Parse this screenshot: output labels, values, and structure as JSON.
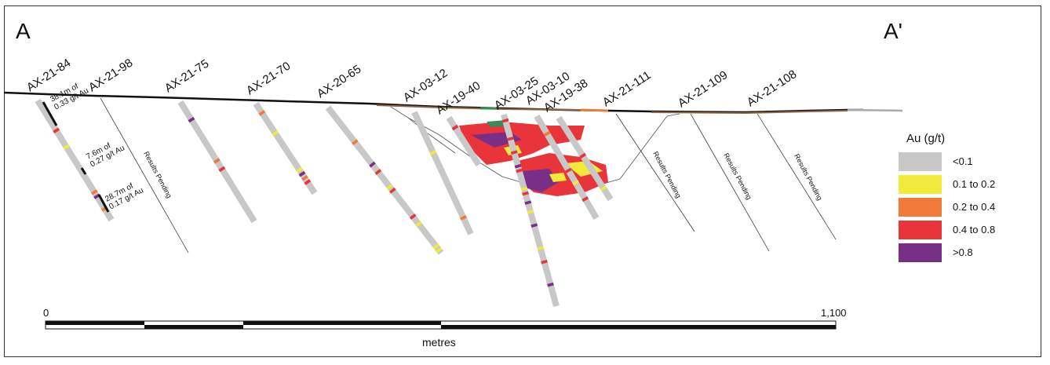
{
  "section": {
    "start_label": "A",
    "end_label": "A'"
  },
  "holes": [
    {
      "name": "AX-21-84"
    },
    {
      "name": "AX-21-98"
    },
    {
      "name": "AX-21-75"
    },
    {
      "name": "AX-21-70"
    },
    {
      "name": "AX-20-65"
    },
    {
      "name": "AX-03-12"
    },
    {
      "name": "AX-19-40"
    },
    {
      "name": "AX-03-25"
    },
    {
      "name": "AX-03-10"
    },
    {
      "name": "AX-19-38"
    },
    {
      "name": "AX-21-111"
    },
    {
      "name": "AX-21-109"
    },
    {
      "name": "AX-21-108"
    }
  ],
  "intercepts": [
    {
      "line1": "38.1m of",
      "line2": "0.33 g/t Au"
    },
    {
      "line1": "7.6m of",
      "line2": "0.27 g/t Au"
    },
    {
      "line1": "28.7m of",
      "line2": "0.17 g/t Au"
    }
  ],
  "pending_label": "Results Pending",
  "legend": {
    "title": "Au (g/t)",
    "items": [
      {
        "label": "<0.1",
        "color": "#c8c8c8"
      },
      {
        "label": "0.1 to 0.2",
        "color": "#f2ea3a"
      },
      {
        "label": "0.2 to 0.4",
        "color": "#ef7a3a"
      },
      {
        "label": "0.4 to 0.8",
        "color": "#e8343a"
      },
      {
        "label": ">0.8",
        "color": "#7a2f86"
      }
    ]
  },
  "scale": {
    "start": "0",
    "end": "1,100",
    "unit": "metres"
  }
}
